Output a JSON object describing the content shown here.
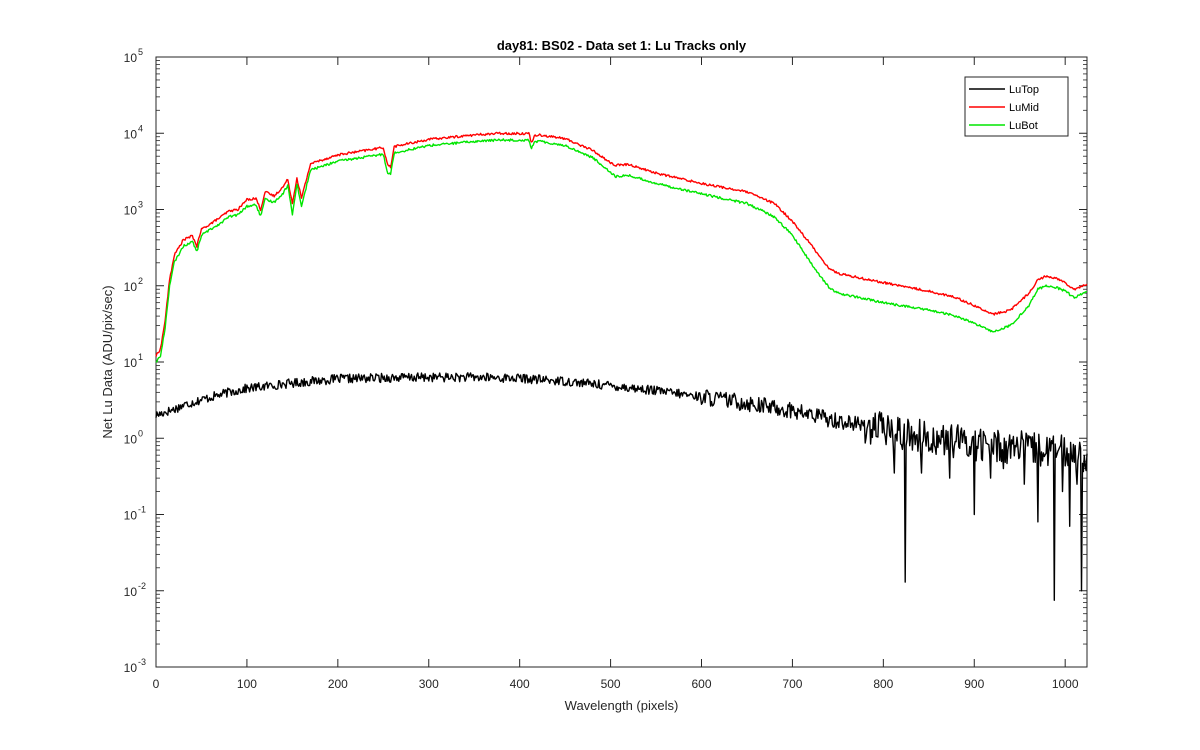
{
  "chart_data": {
    "type": "line",
    "title": "day81: BS02 - Data set 1: Lu Tracks only",
    "xlabel": "Wavelength (pixels)",
    "ylabel": "Net Lu Data (ADU/pix/sec)",
    "xlim": [
      0,
      1024
    ],
    "ylim": [
      0.001,
      100000
    ],
    "yscale": "log",
    "x_ticks": [
      0,
      100,
      200,
      300,
      400,
      500,
      600,
      700,
      800,
      900,
      1000
    ],
    "x_tick_labels": [
      "0",
      "100",
      "200",
      "300",
      "400",
      "500",
      "600",
      "700",
      "800",
      "900",
      "1000"
    ],
    "y_ticks": [
      0.001,
      0.01,
      0.1,
      1,
      10,
      100,
      1000,
      10000,
      100000
    ],
    "y_tick_labels": [
      {
        "base": "10",
        "exp": "-3"
      },
      {
        "base": "10",
        "exp": "-2"
      },
      {
        "base": "10",
        "exp": "-1"
      },
      {
        "base": "10",
        "exp": "0"
      },
      {
        "base": "10",
        "exp": "1"
      },
      {
        "base": "10",
        "exp": "2"
      },
      {
        "base": "10",
        "exp": "3"
      },
      {
        "base": "10",
        "exp": "4"
      },
      {
        "base": "10",
        "exp": "5"
      }
    ],
    "grid": false,
    "legend_position": "top-right",
    "series": [
      {
        "name": "LuTop",
        "color": "#000000",
        "x": [
          0,
          10,
          20,
          30,
          50,
          80,
          100,
          150,
          200,
          250,
          300,
          350,
          400,
          450,
          500,
          550,
          600,
          650,
          700,
          750,
          800,
          850,
          900,
          950,
          1000,
          1024
        ],
        "y": [
          2.0,
          2.2,
          2.4,
          2.7,
          3.2,
          4.0,
          4.5,
          5.3,
          6.0,
          6.2,
          6.3,
          6.3,
          6.1,
          5.6,
          4.9,
          4.2,
          3.5,
          2.9,
          2.3,
          1.7,
          1.3,
          1.0,
          0.85,
          0.75,
          0.65,
          0.6
        ],
        "dips": [
          {
            "x": 812,
            "y": 0.35
          },
          {
            "x": 824,
            "y": 0.013
          },
          {
            "x": 842,
            "y": 0.35
          },
          {
            "x": 873,
            "y": 0.3
          },
          {
            "x": 900,
            "y": 0.1
          },
          {
            "x": 918,
            "y": 0.3
          },
          {
            "x": 932,
            "y": 0.4
          },
          {
            "x": 955,
            "y": 0.25
          },
          {
            "x": 970,
            "y": 0.08
          },
          {
            "x": 988,
            "y": 0.0075
          },
          {
            "x": 997,
            "y": 0.2
          },
          {
            "x": 1005,
            "y": 0.07
          },
          {
            "x": 1013,
            "y": 0.25
          },
          {
            "x": 1018,
            "y": 0.01
          }
        ]
      },
      {
        "name": "LuMid",
        "color": "#ff0000",
        "x": [
          0,
          5,
          10,
          15,
          20,
          30,
          40,
          45,
          50,
          60,
          70,
          80,
          90,
          100,
          110,
          115,
          120,
          130,
          140,
          145,
          150,
          155,
          160,
          170,
          200,
          250,
          255,
          258,
          262,
          270,
          300,
          350,
          380,
          400,
          410,
          413,
          416,
          420,
          450,
          480,
          500,
          505,
          520,
          550,
          600,
          650,
          680,
          700,
          720,
          740,
          750,
          800,
          850,
          880,
          900,
          920,
          940,
          960,
          970,
          980,
          990,
          1000,
          1010,
          1024
        ],
        "y": [
          12,
          15,
          35,
          120,
          250,
          400,
          450,
          330,
          550,
          650,
          780,
          950,
          1000,
          1350,
          1400,
          1000,
          1700,
          1500,
          2000,
          2500,
          1200,
          2600,
          1400,
          4000,
          5200,
          6500,
          3800,
          3600,
          6700,
          7000,
          8300,
          9500,
          10000,
          9900,
          10000,
          7500,
          9200,
          9600,
          8500,
          6000,
          4100,
          3800,
          3900,
          3000,
          2200,
          1700,
          1200,
          700,
          350,
          170,
          145,
          110,
          85,
          70,
          55,
          42,
          48,
          80,
          120,
          135,
          125,
          110,
          90,
          105
        ]
      },
      {
        "name": "LuBot",
        "color": "#00e600",
        "x": [
          0,
          5,
          10,
          15,
          20,
          30,
          40,
          45,
          50,
          60,
          70,
          80,
          90,
          100,
          110,
          115,
          120,
          130,
          140,
          145,
          150,
          155,
          160,
          170,
          200,
          250,
          255,
          258,
          262,
          270,
          300,
          350,
          380,
          400,
          410,
          413,
          416,
          420,
          450,
          480,
          500,
          505,
          520,
          550,
          600,
          650,
          680,
          700,
          720,
          740,
          750,
          800,
          850,
          880,
          900,
          920,
          940,
          960,
          970,
          980,
          990,
          1000,
          1010,
          1024
        ],
        "y": [
          10,
          12,
          28,
          100,
          200,
          330,
          380,
          280,
          460,
          550,
          650,
          800,
          850,
          1100,
          1150,
          820,
          1350,
          1250,
          1650,
          2100,
          850,
          2200,
          1100,
          3300,
          4300,
          5300,
          3000,
          2900,
          5500,
          5800,
          6900,
          7800,
          8200,
          8100,
          8200,
          6200,
          7600,
          7900,
          6900,
          4800,
          3100,
          2700,
          2800,
          2200,
          1600,
          1200,
          800,
          460,
          200,
          95,
          80,
          60,
          48,
          40,
          32,
          25,
          30,
          55,
          90,
          100,
          95,
          85,
          70,
          85
        ]
      }
    ]
  }
}
